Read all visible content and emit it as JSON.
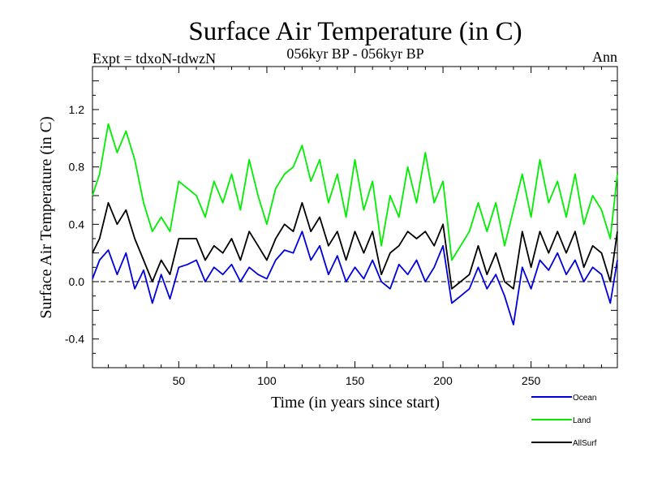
{
  "chart_data": {
    "type": "line",
    "title": "Surface Air Temperature (in C)",
    "subtitle_left": "Expt = tdxoN-tdwzN",
    "subtitle_center": "056kyr BP - 056kyr BP",
    "subtitle_right": "Ann",
    "xlabel": "Time (in years since start)",
    "ylabel": "Surface Air Temperature (in C)",
    "xlim": [
      1,
      299
    ],
    "ylim": [
      -0.6,
      1.5
    ],
    "xticks": [
      50,
      100,
      150,
      200,
      250
    ],
    "yticks": [
      -0.4,
      0.0,
      0.4,
      0.8,
      1.2
    ],
    "ytick_labels": [
      "-0.4",
      "0.0",
      "0.4",
      "0.8",
      "1.2"
    ],
    "zero_line": "dashed",
    "legend_position": "bottom-right",
    "x": [
      1,
      5,
      10,
      15,
      20,
      25,
      30,
      35,
      40,
      45,
      50,
      55,
      60,
      65,
      70,
      75,
      80,
      85,
      90,
      95,
      100,
      105,
      110,
      115,
      120,
      125,
      130,
      135,
      140,
      145,
      150,
      155,
      160,
      165,
      170,
      175,
      180,
      185,
      190,
      195,
      200,
      205,
      210,
      215,
      220,
      225,
      230,
      235,
      240,
      245,
      250,
      255,
      260,
      265,
      270,
      275,
      280,
      285,
      290,
      295,
      299
    ],
    "series": [
      {
        "name": "Ocean",
        "color": "#0000dd",
        "values": [
          0.02,
          0.15,
          0.22,
          0.05,
          0.2,
          -0.05,
          0.08,
          -0.15,
          0.05,
          -0.12,
          0.1,
          0.12,
          0.15,
          0.0,
          0.1,
          0.05,
          0.12,
          0.0,
          0.1,
          0.05,
          0.02,
          0.15,
          0.22,
          0.2,
          0.35,
          0.15,
          0.25,
          0.05,
          0.18,
          0.0,
          0.1,
          0.02,
          0.15,
          0.0,
          -0.05,
          0.12,
          0.05,
          0.15,
          0.0,
          0.1,
          0.25,
          -0.15,
          -0.1,
          -0.05,
          0.1,
          -0.05,
          0.05,
          -0.1,
          -0.3,
          0.1,
          -0.05,
          0.15,
          0.08,
          0.2,
          0.05,
          0.15,
          0.0,
          0.1,
          0.05,
          -0.15,
          0.15
        ]
      },
      {
        "name": "Land",
        "color": "#00ee00",
        "values": [
          0.6,
          0.75,
          1.1,
          0.9,
          1.05,
          0.85,
          0.55,
          0.35,
          0.45,
          0.35,
          0.7,
          0.65,
          0.6,
          0.45,
          0.7,
          0.55,
          0.75,
          0.5,
          0.85,
          0.6,
          0.4,
          0.65,
          0.75,
          0.8,
          0.95,
          0.7,
          0.85,
          0.55,
          0.75,
          0.45,
          0.85,
          0.5,
          0.7,
          0.25,
          0.6,
          0.45,
          0.8,
          0.55,
          0.9,
          0.55,
          0.7,
          0.15,
          0.25,
          0.35,
          0.55,
          0.35,
          0.55,
          0.25,
          0.5,
          0.75,
          0.45,
          0.85,
          0.55,
          0.7,
          0.45,
          0.75,
          0.4,
          0.6,
          0.5,
          0.3,
          0.75
        ]
      },
      {
        "name": "AllSurf",
        "color": "#000000",
        "values": [
          0.2,
          0.3,
          0.55,
          0.4,
          0.5,
          0.3,
          0.15,
          0.0,
          0.15,
          0.05,
          0.3,
          0.3,
          0.3,
          0.15,
          0.25,
          0.2,
          0.3,
          0.15,
          0.35,
          0.25,
          0.15,
          0.3,
          0.4,
          0.35,
          0.55,
          0.35,
          0.45,
          0.25,
          0.35,
          0.15,
          0.35,
          0.2,
          0.35,
          0.05,
          0.2,
          0.25,
          0.35,
          0.3,
          0.35,
          0.25,
          0.4,
          -0.05,
          0.0,
          0.05,
          0.25,
          0.05,
          0.2,
          0.0,
          -0.05,
          0.35,
          0.1,
          0.35,
          0.2,
          0.35,
          0.2,
          0.35,
          0.1,
          0.25,
          0.2,
          0.0,
          0.35
        ]
      }
    ]
  }
}
